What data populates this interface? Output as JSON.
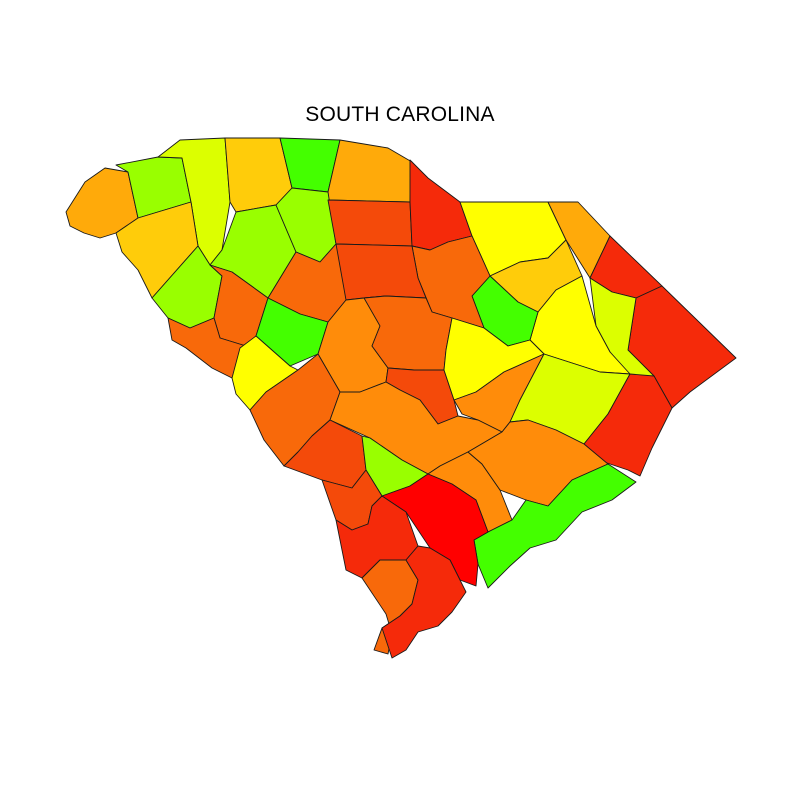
{
  "map": {
    "title": "SOUTH CAROLINA",
    "palette": {
      "red": "#ff0000",
      "red_orange": "#f52a0a",
      "dark_orange": "#f44a0a",
      "orange": "#f8690a",
      "light_orange": "#ff8c0a",
      "amber": "#ffaa0a",
      "gold": "#ffcc0a",
      "yellow": "#ffff00",
      "yellow_green": "#dcff00",
      "chartreuse": "#99ff00",
      "green": "#44ff00"
    },
    "counties": [
      {
        "id": "oconee",
        "color": "amber"
      },
      {
        "id": "pickens",
        "color": "chartreuse"
      },
      {
        "id": "greenville",
        "color": "yellow_green"
      },
      {
        "id": "spartanburg",
        "color": "gold"
      },
      {
        "id": "cherokee",
        "color": "green"
      },
      {
        "id": "york",
        "color": "amber"
      },
      {
        "id": "anderson",
        "color": "gold"
      },
      {
        "id": "laurens",
        "color": "chartreuse"
      },
      {
        "id": "union",
        "color": "chartreuse"
      },
      {
        "id": "chester",
        "color": "dark_orange"
      },
      {
        "id": "lancaster",
        "color": "red_orange"
      },
      {
        "id": "chesterfield",
        "color": "yellow"
      },
      {
        "id": "marlboro",
        "color": "amber"
      },
      {
        "id": "dillon",
        "color": "red_orange"
      },
      {
        "id": "horry",
        "color": "red_orange"
      },
      {
        "id": "marion",
        "color": "yellow_green"
      },
      {
        "id": "darlington",
        "color": "gold"
      },
      {
        "id": "florence",
        "color": "yellow"
      },
      {
        "id": "lee",
        "color": "green"
      },
      {
        "id": "kershaw",
        "color": "orange"
      },
      {
        "id": "fairfield",
        "color": "dark_orange"
      },
      {
        "id": "newberry",
        "color": "orange"
      },
      {
        "id": "abbeville",
        "color": "chartreuse"
      },
      {
        "id": "greenwood",
        "color": "orange"
      },
      {
        "id": "mccormick",
        "color": "orange"
      },
      {
        "id": "saluda",
        "color": "green"
      },
      {
        "id": "edgefield",
        "color": "yellow"
      },
      {
        "id": "lexington",
        "color": "light_orange"
      },
      {
        "id": "richland",
        "color": "orange"
      },
      {
        "id": "calhoun",
        "color": "dark_orange"
      },
      {
        "id": "sumter",
        "color": "yellow"
      },
      {
        "id": "clarendon",
        "color": "light_orange"
      },
      {
        "id": "williamsburg",
        "color": "yellow_green"
      },
      {
        "id": "georgetown",
        "color": "red_orange"
      },
      {
        "id": "aiken",
        "color": "orange"
      },
      {
        "id": "orangeburg",
        "color": "light_orange"
      },
      {
        "id": "barnwell",
        "color": "dark_orange"
      },
      {
        "id": "bamberg",
        "color": "chartreuse"
      },
      {
        "id": "dorchester",
        "color": "light_orange"
      },
      {
        "id": "berkeley",
        "color": "light_orange"
      },
      {
        "id": "charleston",
        "color": "green"
      },
      {
        "id": "allendale",
        "color": "dark_orange"
      },
      {
        "id": "colleton",
        "color": "red"
      },
      {
        "id": "hampton",
        "color": "red_orange"
      },
      {
        "id": "jasper",
        "color": "orange"
      },
      {
        "id": "beaufort",
        "color": "red_orange"
      }
    ]
  }
}
